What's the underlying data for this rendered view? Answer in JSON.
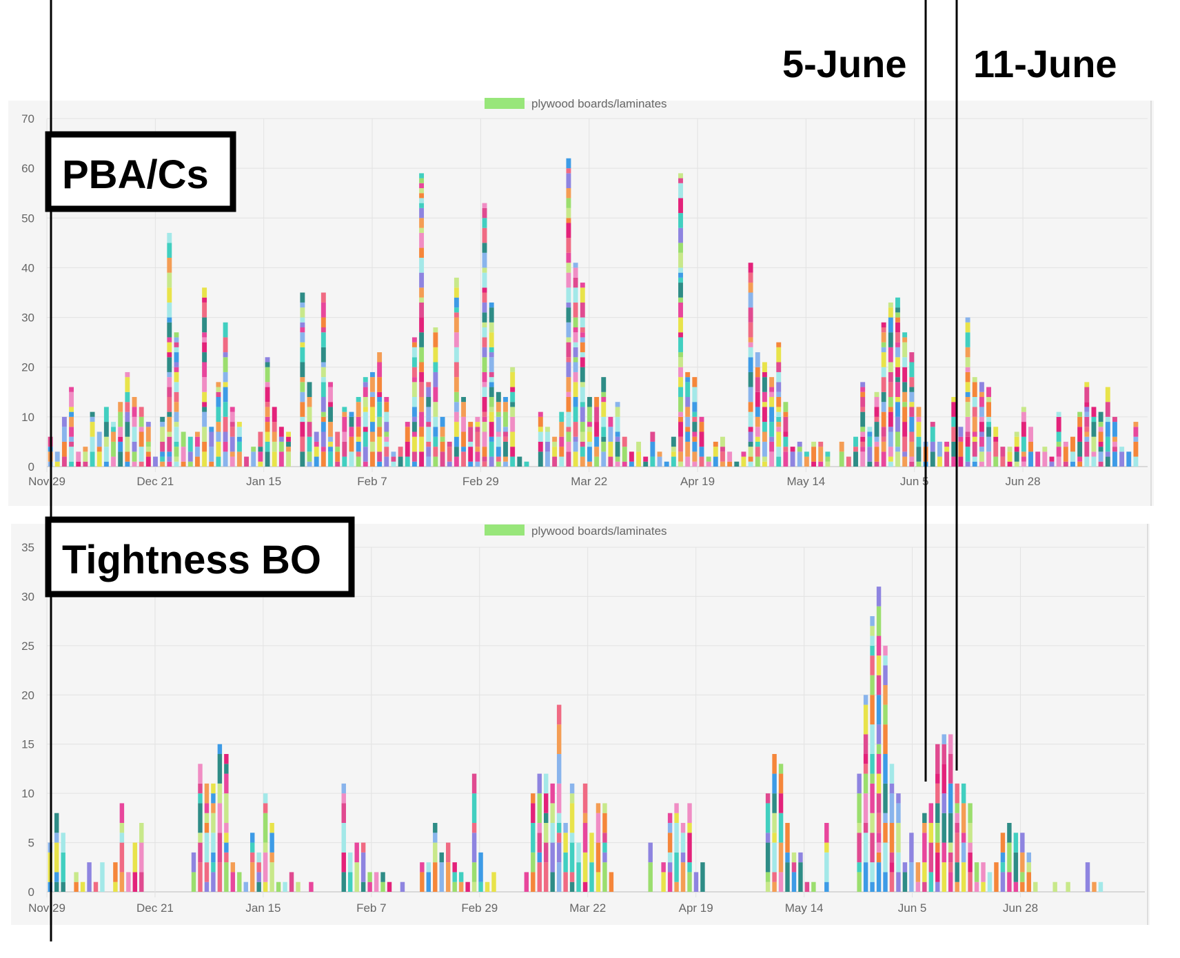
{
  "annotations": {
    "date_labels": [
      "5-June",
      "11-June"
    ],
    "panel_labels": [
      "PBA/Cs",
      "Tightness BO"
    ]
  },
  "colors": {
    "legend_swatch": "#98e67a",
    "palette": [
      "#89b4ec",
      "#e8469c",
      "#9bde6e",
      "#f49d54",
      "#2e8c86",
      "#8e84e0",
      "#f06a83",
      "#41cfc0",
      "#3d9be6",
      "#e3227a",
      "#a3e8e8",
      "#e04a90",
      "#e8e34a",
      "#f5863a",
      "#f08dc4",
      "#c8e88a"
    ]
  },
  "chart_data": [
    {
      "type": "bar",
      "stacked": true,
      "label": "PBA/Cs",
      "legend": [
        "plywood boards/laminates"
      ],
      "legend_position": "top",
      "x_tick_labels": [
        "Nov 29",
        "Dec 21",
        "Jan 15",
        "Feb 7",
        "Feb 29",
        "Mar 22",
        "Apr 19",
        "May 14",
        "Jun 5",
        "Jun 28"
      ],
      "y_ticks": [
        0,
        10,
        20,
        30,
        40,
        50,
        60,
        70
      ],
      "ylim": [
        0,
        70
      ],
      "grid": true,
      "values": [
        6,
        3,
        10,
        16,
        3,
        4,
        11,
        7,
        12,
        9,
        13,
        19,
        14,
        12,
        9,
        2,
        10,
        47,
        27,
        7,
        6,
        7,
        36,
        8,
        17,
        29,
        12,
        9,
        2,
        4,
        7,
        22,
        12,
        8,
        7,
        0,
        35,
        17,
        7,
        35,
        17,
        7,
        12,
        11,
        14,
        18,
        19,
        23,
        14,
        3,
        4,
        9,
        26,
        59,
        17,
        28,
        10,
        5,
        38,
        14,
        9,
        10,
        53,
        33,
        15,
        14,
        20,
        2,
        1,
        0,
        11,
        8,
        6,
        11,
        62,
        41,
        37,
        14,
        14,
        18,
        10,
        13,
        6,
        3,
        5,
        2,
        7,
        3,
        1,
        6,
        59,
        19,
        18,
        10,
        2,
        5,
        6,
        3,
        1,
        3,
        41,
        23,
        21,
        18,
        25,
        13,
        4,
        5,
        3,
        5,
        5,
        3,
        0,
        5,
        2,
        6,
        17,
        8,
        15,
        29,
        33,
        34,
        27,
        23,
        12,
        5,
        9,
        5,
        5,
        14,
        8,
        30,
        18,
        17,
        16,
        8,
        4,
        4,
        7,
        12,
        8,
        3,
        4,
        2,
        11,
        5,
        6,
        11,
        17,
        12,
        11,
        16,
        10,
        4,
        3,
        9
      ],
      "pattern": "Daily stacked counts spike around Dec 21, Feb 14, Mar 15, Apr 19 (up to ~62) and again around Jun 5–Jun 11"
    },
    {
      "type": "bar",
      "stacked": true,
      "label": "Tightness BO",
      "legend": [
        "plywood boards/laminates"
      ],
      "legend_position": "top",
      "x_tick_labels": [
        "Nov 29",
        "Dec 21",
        "Jan 15",
        "Feb 7",
        "Feb 29",
        "Mar 22",
        "Apr 19",
        "May 14",
        "Jun 5",
        "Jun 28"
      ],
      "y_ticks": [
        0,
        5,
        10,
        15,
        20,
        25,
        30,
        35
      ],
      "ylim": [
        0,
        35
      ],
      "grid": true,
      "values": [
        5,
        8,
        6,
        0,
        2,
        1,
        3,
        1,
        3,
        0,
        3,
        9,
        2,
        5,
        7,
        0,
        0,
        0,
        0,
        0,
        0,
        0,
        4,
        13,
        11,
        11,
        15,
        14,
        3,
        2,
        1,
        6,
        4,
        10,
        7,
        1,
        1,
        2,
        1,
        0,
        1,
        0,
        0,
        0,
        0,
        11,
        4,
        5,
        5,
        2,
        2,
        2,
        1,
        0,
        1,
        0,
        0,
        3,
        3,
        7,
        4,
        5,
        3,
        2,
        1,
        12,
        4,
        1,
        2,
        0,
        0,
        0,
        0,
        2,
        10,
        12,
        12,
        11,
        19,
        7,
        11,
        5,
        11,
        6,
        9,
        9,
        2,
        0,
        0,
        0,
        0,
        0,
        5,
        0,
        3,
        8,
        9,
        7,
        9,
        2,
        3,
        0,
        0,
        0,
        0,
        0,
        0,
        0,
        0,
        0,
        10,
        14,
        13,
        7,
        4,
        4,
        1,
        1,
        0,
        7,
        0,
        0,
        0,
        0,
        12,
        20,
        28,
        31,
        25,
        13,
        10,
        3,
        6,
        3,
        8,
        9,
        15,
        16,
        16,
        11,
        11,
        9,
        3,
        3,
        2,
        3,
        6,
        7,
        6,
        6,
        4,
        1,
        0,
        0,
        1,
        0,
        1,
        0,
        0,
        3,
        1,
        1,
        0,
        0,
        0,
        0,
        0
      ],
      "pattern": "Mostly low daily stacked counts with clusters near Dec 28, Mar 22 (~19) and a sharp peak near Jun 11 (~31)"
    }
  ]
}
